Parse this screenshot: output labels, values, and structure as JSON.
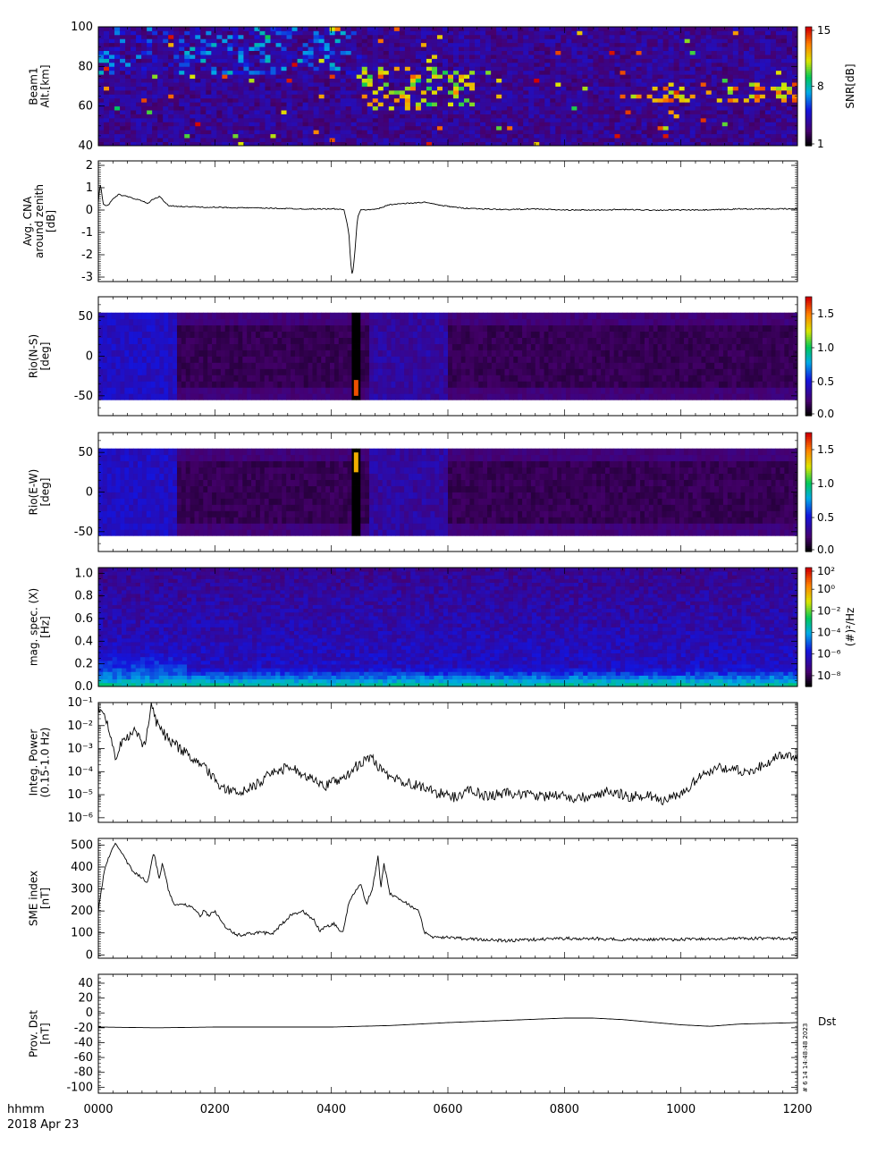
{
  "footer": {
    "time_format": "hhmm",
    "date": "2018 Apr 23",
    "x_ticks": [
      "0000",
      "0200",
      "0400",
      "0600",
      "0800",
      "1000",
      "1200"
    ]
  },
  "side_note": "# 6 14 14:48:48 2023",
  "chart_data": [
    {
      "type": "heatmap",
      "ylabel": [
        "Beam1",
        "Alt.[km]"
      ],
      "yticks": [
        40,
        60,
        80,
        100
      ],
      "ylim": [
        40,
        100
      ],
      "xlim_hhmm": [
        "0000",
        "1200"
      ],
      "colorbar": {
        "label": "SNR[dB]",
        "ticks": [
          "1",
          "8",
          "15"
        ],
        "range": [
          1,
          15
        ]
      },
      "palette": "rainbow (black-purple-blue-cyan-green-yellow-red)",
      "features": [
        {
          "label": "scattered echoes",
          "x_range_hhmm": [
            "0000",
            "0430"
          ],
          "y_range_km": [
            76,
            100
          ],
          "snr_db": 4
        },
        {
          "label": "absorption layer",
          "x_range_hhmm": [
            "0430",
            "0630"
          ],
          "y_range_km": [
            58,
            80
          ],
          "snr_db": 9
        },
        {
          "label": "absorption layer",
          "x_range_hhmm": [
            "0850",
            "1200"
          ],
          "y_range_km": [
            62,
            72
          ],
          "snr_db": 10
        }
      ]
    },
    {
      "type": "line",
      "ylabel": [
        "Avg. CNA",
        "around zenith",
        "[dB]"
      ],
      "yticks": [
        -3,
        -2,
        -1,
        0,
        1,
        2
      ],
      "ylim": [
        -3.2,
        2.2
      ],
      "x_hours": [
        0.0,
        0.03,
        0.05,
        0.08,
        0.12,
        0.18,
        0.25,
        0.35,
        0.5,
        0.7,
        0.85,
        0.95,
        1.05,
        1.2,
        1.5,
        2.0,
        2.5,
        3.0,
        3.5,
        4.1,
        4.22,
        4.3,
        4.33,
        4.36,
        4.4,
        4.45,
        4.5,
        4.8,
        5.0,
        5.3,
        5.6,
        5.9,
        6.2,
        6.6,
        7.0,
        7.5,
        8.0,
        8.5,
        9.0,
        9.5,
        10.0,
        10.5,
        11.0,
        11.5,
        12.0
      ],
      "values": [
        0.3,
        1.2,
        0.9,
        0.3,
        0.2,
        0.25,
        0.5,
        0.7,
        0.6,
        0.45,
        0.3,
        0.5,
        0.6,
        0.2,
        0.15,
        0.12,
        0.1,
        0.08,
        0.05,
        0.05,
        0.0,
        -1.0,
        -2.3,
        -3.0,
        -2.0,
        -0.3,
        0.0,
        0.05,
        0.25,
        0.3,
        0.35,
        0.2,
        0.1,
        0.05,
        0.02,
        0.05,
        0.0,
        0.0,
        0.02,
        0.0,
        0.0,
        0.0,
        0.05,
        0.05,
        0.05
      ]
    },
    {
      "type": "heatmap",
      "ylabel": [
        "Rio(N-S)",
        "[deg]"
      ],
      "yticks": [
        -50,
        0,
        50
      ],
      "ylim": [
        -75,
        75
      ],
      "data_extent_deg": [
        -55,
        55
      ],
      "xlim_hhmm": [
        "0000",
        "1200"
      ],
      "colorbar": {
        "ticks": [
          "0.0",
          "0.5",
          "1.0",
          "1.5"
        ],
        "range": [
          0,
          1.75
        ]
      },
      "features": [
        {
          "label": "elevated",
          "x_range_hhmm": [
            "0000",
            "0120"
          ],
          "value": 0.45
        },
        {
          "label": "dark gap",
          "x_range_hhmm": [
            "0420",
            "0430"
          ],
          "value": 0.0
        },
        {
          "label": "red spot",
          "x_hhmm": "0425",
          "y_range_deg": [
            -50,
            -30
          ],
          "value": 1.6
        },
        {
          "label": "elevated",
          "x_range_hhmm": [
            "0440",
            "0600"
          ],
          "value": 0.35
        }
      ]
    },
    {
      "type": "heatmap",
      "ylabel": [
        "Rio(E-W)",
        "[deg]"
      ],
      "yticks": [
        -50,
        0,
        50
      ],
      "ylim": [
        -75,
        75
      ],
      "data_extent_deg": [
        -55,
        55
      ],
      "xlim_hhmm": [
        "0000",
        "1200"
      ],
      "colorbar": {
        "ticks": [
          "0.0",
          "0.5",
          "1.0",
          "1.5"
        ],
        "range": [
          0,
          1.75
        ]
      },
      "features": [
        {
          "label": "elevated",
          "x_range_hhmm": [
            "0000",
            "0120"
          ],
          "value": 0.45
        },
        {
          "label": "dark gap",
          "x_range_hhmm": [
            "0420",
            "0430"
          ],
          "value": 0.0
        },
        {
          "label": "red/yellow spot",
          "x_hhmm": "0425",
          "y_range_deg": [
            25,
            50
          ],
          "value": 1.4
        },
        {
          "label": "elevated",
          "x_range_hhmm": [
            "0440",
            "0600"
          ],
          "value": 0.35
        }
      ]
    },
    {
      "type": "heatmap",
      "ylabel": [
        "mag. spec. (X)",
        "[Hz]"
      ],
      "yticks": [
        "0.0",
        "0.2",
        "0.4",
        "0.6",
        "0.8",
        "1.0"
      ],
      "ylim": [
        0,
        1.05
      ],
      "xlim_hhmm": [
        "0000",
        "1200"
      ],
      "colorbar": {
        "label": "(#)²/Hz",
        "ticks": [
          "10²",
          "10⁰",
          "10⁻²",
          "10⁻⁴",
          "10⁻⁶",
          "10⁻⁸"
        ],
        "log_range": [
          -9,
          2
        ]
      },
      "features": [
        {
          "label": "low-frequency power",
          "x_range_hhmm": [
            "0000",
            "1200"
          ],
          "y_range_hz": [
            0.0,
            0.15
          ],
          "log_value": -3
        },
        {
          "label": "broadband",
          "x_range_hhmm": [
            "0000",
            "0130"
          ],
          "y_range_hz": [
            0.0,
            0.4
          ],
          "log_value": -4
        }
      ]
    },
    {
      "type": "line",
      "ylabel": [
        "Integ. Power",
        "(0.15-1.0 Hz)"
      ],
      "ytick_labels": [
        "10⁻⁶",
        "10⁻⁵",
        "10⁻⁴",
        "10⁻³",
        "10⁻²",
        "10⁻¹"
      ],
      "yscale": "log",
      "ylim_log10": [
        -6.2,
        -1
      ],
      "x_hours": [
        0.0,
        0.1,
        0.2,
        0.25,
        0.3,
        0.4,
        0.6,
        0.8,
        0.9,
        1.0,
        1.2,
        1.5,
        1.8,
        2.1,
        2.4,
        2.7,
        3.0,
        3.3,
        3.6,
        3.9,
        4.2,
        4.5,
        4.7,
        4.9,
        5.2,
        5.5,
        5.8,
        6.1,
        6.4,
        6.7,
        7.0,
        7.3,
        7.6,
        7.9,
        8.2,
        8.5,
        8.8,
        9.1,
        9.4,
        9.7,
        10.0,
        10.3,
        10.6,
        10.9,
        11.2,
        11.5,
        11.8,
        12.0
      ],
      "values_log10": [
        -1.3,
        -1.5,
        -2.4,
        -2.8,
        -3.6,
        -2.7,
        -2.2,
        -2.9,
        -1.1,
        -1.9,
        -2.6,
        -3.2,
        -3.8,
        -4.6,
        -5.0,
        -4.6,
        -4.0,
        -3.8,
        -4.2,
        -4.6,
        -4.3,
        -3.6,
        -3.4,
        -4.1,
        -4.4,
        -4.6,
        -4.9,
        -5.1,
        -4.8,
        -5.1,
        -4.9,
        -5.0,
        -5.1,
        -5.0,
        -5.2,
        -5.0,
        -4.8,
        -5.1,
        -5.0,
        -5.3,
        -5.0,
        -4.3,
        -3.8,
        -3.9,
        -4.0,
        -3.6,
        -3.2,
        -3.4
      ]
    },
    {
      "type": "line",
      "ylabel": [
        "SME index",
        "[nT]"
      ],
      "yticks": [
        0,
        100,
        200,
        300,
        400,
        500
      ],
      "ylim": [
        -15,
        530
      ],
      "x_hours": [
        0.0,
        0.1,
        0.2,
        0.3,
        0.45,
        0.6,
        0.75,
        0.85,
        0.95,
        1.05,
        1.1,
        1.2,
        1.3,
        1.5,
        1.7,
        1.75,
        1.8,
        1.9,
        2.0,
        2.2,
        2.4,
        2.7,
        3.0,
        3.3,
        3.5,
        3.7,
        3.8,
        3.9,
        4.05,
        4.2,
        4.3,
        4.4,
        4.5,
        4.6,
        4.7,
        4.8,
        4.85,
        4.9,
        5.0,
        5.2,
        5.5,
        5.6,
        5.75,
        6.0,
        6.5,
        7.0,
        7.5,
        8.0,
        8.5,
        9.0,
        10.0,
        11.0,
        12.0
      ],
      "values": [
        200,
        380,
        460,
        510,
        440,
        380,
        350,
        330,
        470,
        340,
        420,
        300,
        230,
        230,
        200,
        170,
        200,
        180,
        200,
        120,
        90,
        100,
        100,
        180,
        200,
        160,
        110,
        130,
        140,
        100,
        240,
        280,
        330,
        230,
        300,
        445,
        300,
        420,
        280,
        250,
        200,
        100,
        80,
        80,
        70,
        65,
        70,
        75,
        75,
        70,
        70,
        75,
        75
      ]
    },
    {
      "type": "line",
      "ylabel": [
        "Prov. Dst",
        "[nT]"
      ],
      "yticks": [
        -100,
        -80,
        -60,
        -40,
        -20,
        0,
        20,
        40
      ],
      "ylim": [
        -108,
        52
      ],
      "series_label": "Dst",
      "x_hours": [
        0,
        1,
        2,
        3,
        4,
        5,
        6,
        7,
        8,
        8.5,
        9,
        10,
        10.5,
        11,
        12
      ],
      "values": [
        -19,
        -20,
        -19,
        -19,
        -19,
        -17,
        -13,
        -10,
        -7,
        -7,
        -9,
        -16,
        -18,
        -15,
        -13
      ]
    }
  ]
}
